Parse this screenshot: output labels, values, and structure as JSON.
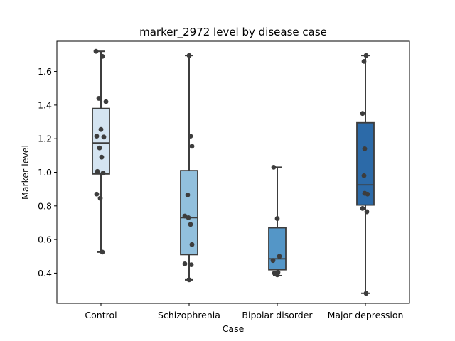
{
  "chart_data": {
    "type": "box",
    "title": "marker_2972 level by disease case",
    "xlabel": "Case",
    "ylabel": "Marker level",
    "ylim": [
      0.22,
      1.78
    ],
    "yticks": [
      0.4,
      0.6,
      0.8,
      1.0,
      1.2,
      1.4,
      1.6
    ],
    "ytick_labels": [
      "0.4",
      "0.6",
      "0.8",
      "1.0",
      "1.2",
      "1.4",
      "1.6"
    ],
    "grid": false,
    "legend": "none",
    "categories": [
      "Control",
      "Schizophrenia",
      "Bipolar disorder",
      "Major depression"
    ],
    "colors": [
      "#d4e4f1",
      "#92c0dd",
      "#5496c7",
      "#2c6aa8"
    ],
    "point_color": "#3d3d3d",
    "boxes": [
      {
        "min": 0.525,
        "q1": 0.99,
        "median": 1.175,
        "q3": 1.38,
        "max": 1.72
      },
      {
        "min": 0.36,
        "q1": 0.51,
        "median": 0.73,
        "q3": 1.01,
        "max": 1.695
      },
      {
        "min": 0.385,
        "q1": 0.42,
        "median": 0.485,
        "q3": 0.67,
        "max": 1.03
      },
      {
        "min": 0.28,
        "q1": 0.805,
        "median": 0.925,
        "q3": 1.295,
        "max": 1.695
      }
    ],
    "points": [
      [
        1.72,
        1.69,
        1.44,
        1.42,
        1.255,
        1.215,
        1.21,
        1.145,
        1.09,
        1.005,
        0.995,
        0.87,
        0.845,
        0.525
      ],
      [
        1.695,
        1.215,
        1.155,
        0.865,
        0.74,
        0.73,
        0.69,
        0.57,
        0.455,
        0.45,
        0.36
      ],
      [
        1.03,
        0.725,
        0.5,
        0.475,
        0.405,
        0.4,
        0.39
      ],
      [
        1.695,
        1.66,
        1.35,
        1.14,
        0.98,
        0.875,
        0.87,
        0.785,
        0.765,
        0.28
      ]
    ]
  }
}
